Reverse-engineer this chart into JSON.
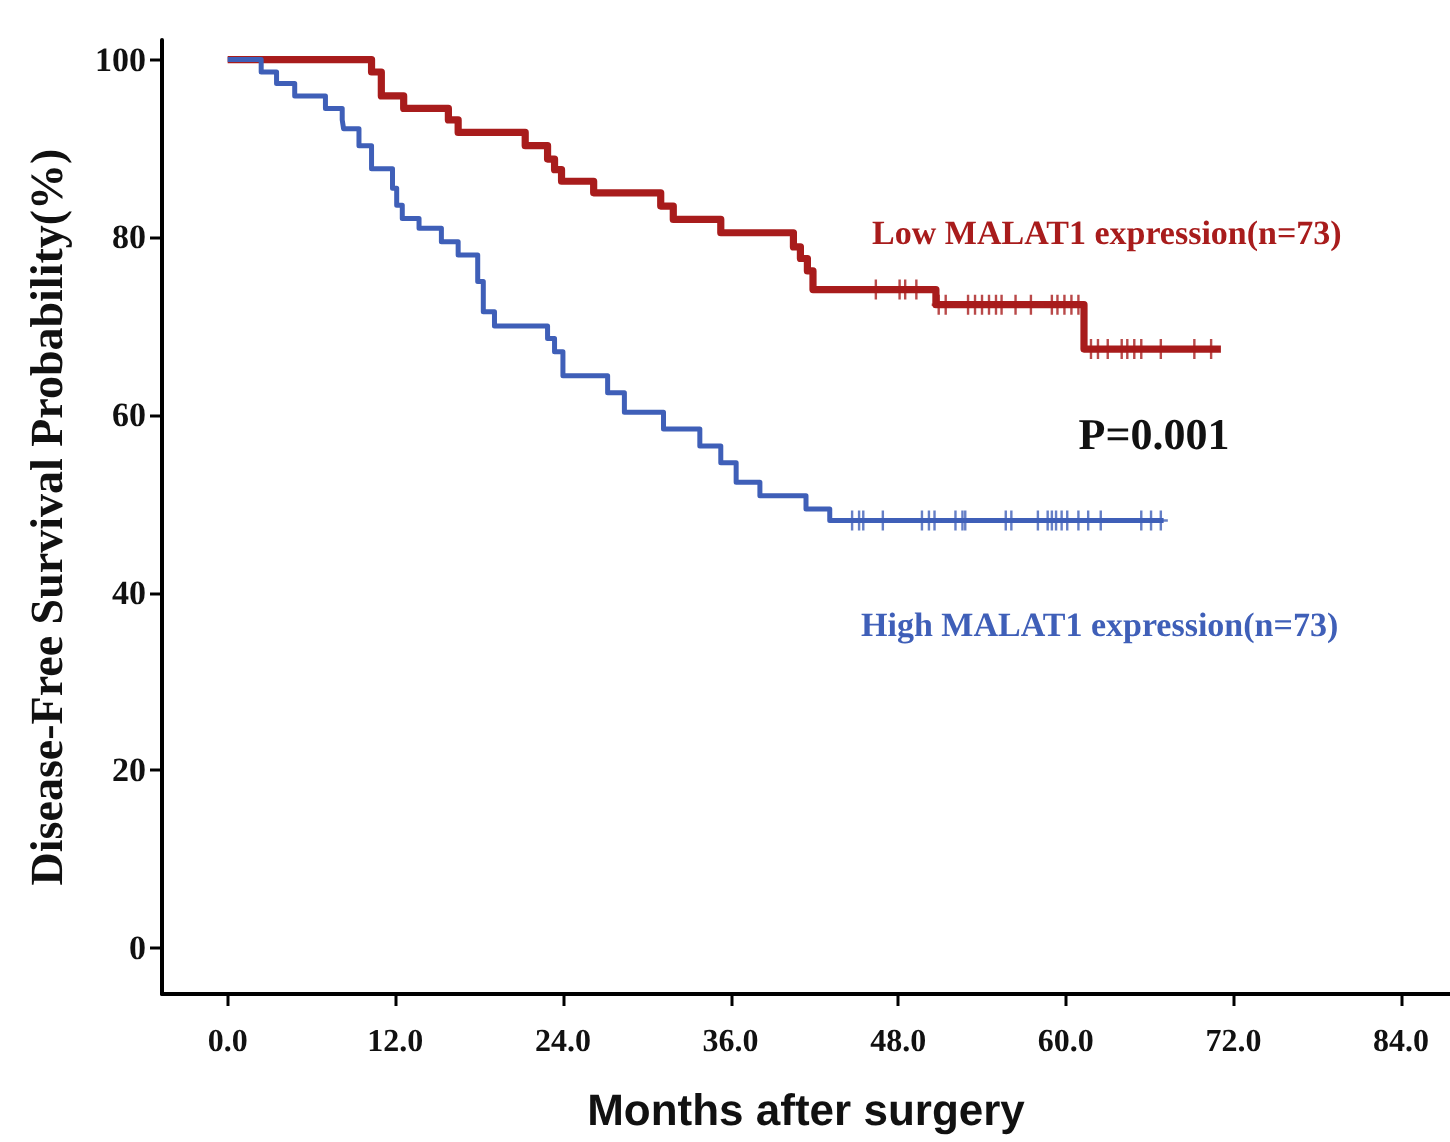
{
  "chart_data": {
    "type": "step",
    "xlabel": "Months after surgery",
    "ylabel": "Disease-Free Survival Probability(%)",
    "annotations": [
      "P=0.001"
    ],
    "xlim": [
      -4.7,
      87.5
    ],
    "xticks": [
      {
        "value": 0,
        "label": "0.0"
      },
      {
        "value": 12,
        "label": "12.0"
      },
      {
        "value": 24,
        "label": "24.0"
      },
      {
        "value": 36,
        "label": "36.0"
      },
      {
        "value": 48,
        "label": "48.0"
      },
      {
        "value": 60,
        "label": "60.0"
      },
      {
        "value": 72,
        "label": "72.0"
      },
      {
        "value": 84,
        "label": "84.0"
      }
    ],
    "ylim": [
      -5.2,
      102.2
    ],
    "yticks": [
      0,
      20,
      40,
      60,
      80,
      100
    ],
    "grid": false,
    "legend": false,
    "series": [
      {
        "name": "Low MALAT1 expression(n=73)",
        "color": "#a81c1c",
        "marker": "none",
        "x": [
          0,
          10.3,
          11.0,
          12.6,
          15.8,
          16.5,
          21.3,
          22.9,
          23.4,
          23.9,
          26.2,
          31.0,
          31.9,
          35.3,
          40.5,
          41.0,
          41.5,
          41.9,
          50.7,
          61.3,
          71.1
        ],
        "values": [
          100,
          98.6,
          95.9,
          94.5,
          93.2,
          91.8,
          90.3,
          88.8,
          87.6,
          86.3,
          85.0,
          83.5,
          82.0,
          80.5,
          78.9,
          77.6,
          76.2,
          74.1,
          72.4,
          67.4,
          67.4
        ]
      },
      {
        "name": "High MALAT1 expression(n=73)",
        "color": "#3f5fb8",
        "marker": "none",
        "x": [
          0,
          2.4,
          3.5,
          4.8,
          7.0,
          8.2,
          8.3,
          9.4,
          10.3,
          11.8,
          12.1,
          12.5,
          13.7,
          15.3,
          16.5,
          17.9,
          18.3,
          19.1,
          22.9,
          23.4,
          24.0,
          27.2,
          28.4,
          31.2,
          33.8,
          35.3,
          36.4,
          38.1,
          41.4,
          43.1,
          67.0
        ],
        "values": [
          100,
          98.6,
          97.3,
          95.9,
          94.5,
          93.2,
          92.2,
          90.3,
          87.7,
          85.5,
          83.6,
          82.1,
          81.0,
          79.5,
          78.0,
          75.0,
          71.6,
          70.0,
          68.6,
          67.1,
          64.4,
          62.5,
          60.3,
          58.4,
          56.5,
          54.6,
          52.4,
          50.9,
          49.4,
          48.1,
          48.1
        ]
      },
      {
        "color": "#a81c1c",
        "type": "scatter",
        "marker": "cross",
        "x": [
          46.4,
          48.1,
          48.5,
          49.3,
          50.9,
          51.4,
          53.0,
          53.5,
          54.0,
          54.5,
          55.0,
          55.4,
          56.4,
          57.5,
          59.0,
          59.4,
          59.9,
          60.4,
          60.9,
          61.8,
          62.3,
          63.0,
          64.0,
          64.4,
          64.9,
          65.4,
          66.8,
          69.2,
          70.4
        ],
        "values": [
          74.1,
          74.1,
          74.1,
          74.1,
          72.4,
          72.4,
          72.4,
          72.4,
          72.4,
          72.4,
          72.4,
          72.4,
          72.4,
          72.4,
          72.4,
          72.4,
          72.4,
          72.4,
          72.4,
          67.4,
          67.4,
          67.4,
          67.4,
          67.4,
          67.4,
          67.4,
          67.4,
          67.4,
          67.4
        ]
      },
      {
        "color": "#3f5fb8",
        "type": "scatter",
        "marker": "cross",
        "x": [
          44.7,
          45.2,
          45.5,
          46.9,
          49.7,
          50.2,
          50.6,
          52.1,
          52.6,
          52.8,
          55.7,
          56.1,
          58.0,
          58.7,
          59.0,
          59.3,
          59.7,
          60.1,
          60.9,
          61.6,
          62.5,
          65.4,
          66.1,
          66.8
        ],
        "values": [
          48.1,
          48.1,
          48.1,
          48.1,
          48.1,
          48.1,
          48.1,
          48.1,
          48.1,
          48.1,
          48.1,
          48.1,
          48.1,
          48.1,
          48.1,
          48.1,
          48.1,
          48.1,
          48.1,
          48.1,
          48.1,
          48.1,
          48.1,
          48.1
        ]
      }
    ]
  }
}
